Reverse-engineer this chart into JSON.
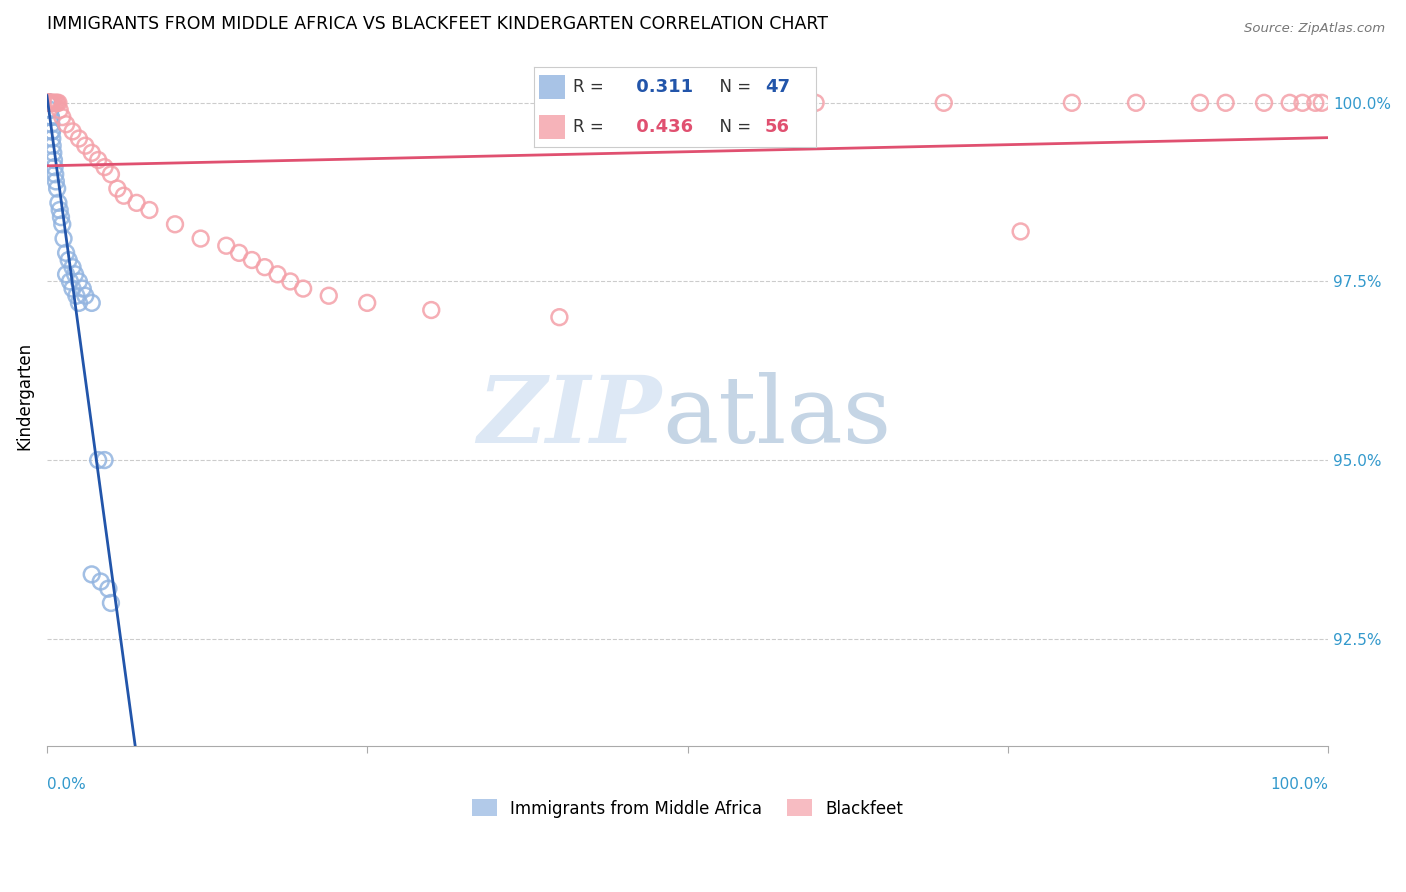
{
  "title": "IMMIGRANTS FROM MIDDLE AFRICA VS BLACKFEET KINDERGARTEN CORRELATION CHART",
  "source": "Source: ZipAtlas.com",
  "ylabel": "Kindergarten",
  "legend_label1": "Immigrants from Middle Africa",
  "legend_label2": "Blackfeet",
  "r1": 0.311,
  "n1": 47,
  "r2": 0.436,
  "n2": 56,
  "blue_color": "#92B4E0",
  "pink_color": "#F4A0A8",
  "blue_line_color": "#2255AA",
  "pink_line_color": "#E05070",
  "blue_x": [
    0.05,
    0.08,
    0.1,
    0.12,
    0.15,
    0.18,
    0.2,
    0.22,
    0.25,
    0.28,
    0.3,
    0.32,
    0.35,
    0.38,
    0.4,
    0.42,
    0.45,
    0.5,
    0.55,
    0.6,
    0.65,
    0.7,
    0.8,
    0.9,
    1.0,
    1.1,
    1.2,
    1.3,
    1.5,
    1.7,
    2.0,
    2.2,
    2.5,
    2.8,
    3.0,
    3.5,
    4.0,
    4.5,
    1.5,
    1.8,
    2.0,
    2.3,
    2.5,
    3.5,
    4.2,
    4.8,
    5.0
  ],
  "blue_y": [
    100.0,
    100.0,
    100.0,
    100.0,
    100.0,
    100.0,
    100.0,
    100.0,
    100.0,
    99.9,
    99.8,
    99.8,
    99.7,
    99.6,
    99.6,
    99.5,
    99.4,
    99.3,
    99.2,
    99.1,
    99.0,
    98.9,
    98.8,
    98.6,
    98.5,
    98.4,
    98.3,
    98.1,
    97.9,
    97.8,
    97.7,
    97.6,
    97.5,
    97.4,
    97.3,
    97.2,
    95.0,
    95.0,
    97.6,
    97.5,
    97.4,
    97.3,
    97.2,
    93.4,
    93.3,
    93.2,
    93.0
  ],
  "pink_x": [
    0.05,
    0.08,
    0.1,
    0.12,
    0.15,
    0.18,
    0.2,
    0.25,
    0.3,
    0.35,
    0.4,
    0.5,
    0.6,
    0.7,
    0.8,
    0.9,
    1.0,
    1.2,
    1.5,
    2.0,
    2.5,
    3.0,
    3.5,
    4.0,
    4.5,
    5.0,
    5.5,
    6.0,
    7.0,
    8.0,
    10.0,
    12.0,
    14.0,
    15.0,
    16.0,
    17.0,
    18.0,
    19.0,
    20.0,
    22.0,
    25.0,
    30.0,
    40.0,
    50.0,
    60.0,
    70.0,
    80.0,
    85.0,
    90.0,
    92.0,
    95.0,
    97.0,
    98.0,
    99.0,
    99.5,
    76.0
  ],
  "pink_y": [
    100.0,
    100.0,
    100.0,
    100.0,
    100.0,
    100.0,
    100.0,
    100.0,
    100.0,
    100.0,
    100.0,
    100.0,
    100.0,
    100.0,
    100.0,
    100.0,
    99.9,
    99.8,
    99.7,
    99.6,
    99.5,
    99.4,
    99.3,
    99.2,
    99.1,
    99.0,
    98.8,
    98.7,
    98.6,
    98.5,
    98.3,
    98.1,
    98.0,
    97.9,
    97.8,
    97.7,
    97.6,
    97.5,
    97.4,
    97.3,
    97.2,
    97.1,
    97.0,
    100.0,
    100.0,
    100.0,
    100.0,
    100.0,
    100.0,
    100.0,
    100.0,
    100.0,
    100.0,
    100.0,
    100.0,
    98.2
  ],
  "ylim_low": 91.0,
  "ylim_high": 100.8,
  "xlim_low": 0.0,
  "xlim_high": 100.0,
  "yticks": [
    92.5,
    95.0,
    97.5,
    100.0
  ],
  "ytick_labels": [
    "92.5%",
    "95.0%",
    "97.5%",
    "100.0%"
  ],
  "blue_trendline_x0": 0.0,
  "blue_trendline_x1": 5.0,
  "blue_trendline_y0": 97.2,
  "blue_trendline_y1": 100.1,
  "pink_trendline_x0": 0.0,
  "pink_trendline_x1": 100.0,
  "pink_trendline_y0": 99.1,
  "pink_trendline_y1": 100.0
}
